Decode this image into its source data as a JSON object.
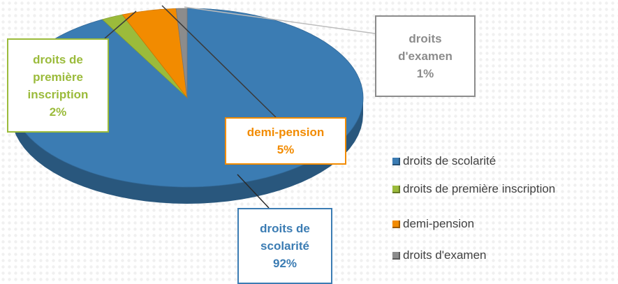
{
  "chart_data": {
    "type": "pie",
    "categories": [
      "droits de scolarité",
      "droits de première inscription",
      "demi-pension",
      "droits d'examen"
    ],
    "values": [
      92,
      2,
      5,
      1
    ],
    "value_labels": [
      "92%",
      "2%",
      "5%",
      "1%"
    ],
    "colors": [
      "#3b7cb3",
      "#9bbb3b",
      "#f28b00",
      "#8c8c8c"
    ],
    "legend": "right"
  }
}
